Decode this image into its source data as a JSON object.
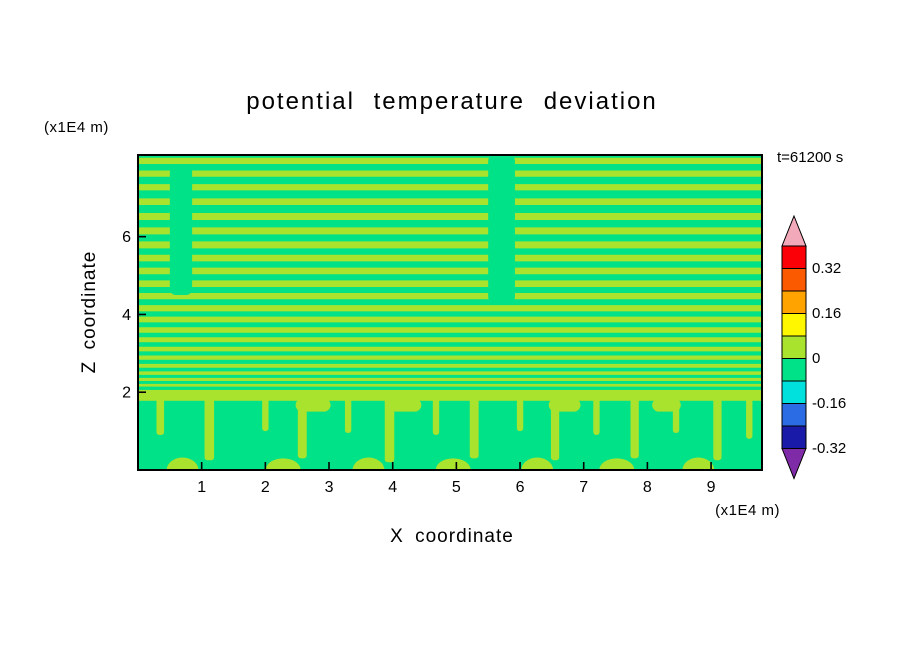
{
  "title": "potential temperature deviation",
  "annotations": {
    "time_label": "t=61200 s",
    "z_axis_units": "(x1E4 m)",
    "x_axis_units": "(x1E4 m)"
  },
  "axes": {
    "x_label": "X coordinate",
    "z_label": "Z coordinate"
  },
  "colors": {
    "background": "#FFFFFF",
    "frame": "#000000",
    "text": "#000000",
    "field_green": "#00E287",
    "stripe_yellowgreen": "#A9E32E"
  },
  "colorbar": {
    "labels": [
      "0.32",
      "0.16",
      "0",
      "-0.16",
      "-0.32"
    ],
    "segment_colors_top_to_bottom": [
      "#FB0007",
      "#FC5A00",
      "#FFA300",
      "#FFF700",
      "#A9E32E",
      "#00E287",
      "#00E0DC",
      "#2B6BE3",
      "#1A1AA8"
    ],
    "segment_values_top_to_bottom": [
      [
        0.32,
        0.4
      ],
      [
        0.24,
        0.32
      ],
      [
        0.16,
        0.24
      ],
      [
        0.08,
        0.16
      ],
      [
        0.0,
        0.08
      ],
      [
        -0.08,
        0.0
      ],
      [
        -0.16,
        -0.08
      ],
      [
        -0.24,
        -0.16
      ],
      [
        -0.32,
        -0.24
      ]
    ],
    "top_arrow_color": "#F2A9B9",
    "bottom_arrow_color": "#7F2BA8"
  },
  "chart_data": {
    "type": "heatmap",
    "subtype": "filled-contour x-z cross-section",
    "title": "potential temperature deviation",
    "xlabel": "X coordinate (x1E4 m)",
    "ylabel": "Z coordinate (x1E4 m)",
    "time_annotation": "t=61200 s",
    "xlim": [
      0,
      9.8
    ],
    "zlim": [
      0,
      8.1
    ],
    "x_ticks": [
      1,
      2,
      3,
      4,
      5,
      6,
      7,
      8,
      9
    ],
    "z_ticks": [
      2,
      4,
      6
    ],
    "contour_interval": 0.08,
    "labeled_levels": [
      0.32,
      0.16,
      0,
      -0.16,
      -0.32
    ],
    "field_value_bands": {
      "green_background": [
        -0.08,
        0.0
      ],
      "yellowgreen_stripes": [
        0.0,
        0.08
      ]
    },
    "description": "Thin horizontal gravity-wave layers (values alternating between the -0.08..0 and 0..0.08 bands) above z=2; boundary-layer band near z=2 with convective plume curtains below.",
    "wave_layers": [
      [
        7.95,
        0.16
      ],
      [
        7.62,
        0.16
      ],
      [
        7.27,
        0.16
      ],
      [
        6.9,
        0.17
      ],
      [
        6.52,
        0.18
      ],
      [
        6.15,
        0.18
      ],
      [
        5.79,
        0.18
      ],
      [
        5.45,
        0.17
      ],
      [
        5.12,
        0.17
      ],
      [
        4.79,
        0.17
      ],
      [
        4.47,
        0.16
      ],
      [
        4.16,
        0.16
      ],
      [
        3.87,
        0.15
      ],
      [
        3.6,
        0.14
      ],
      [
        3.35,
        0.13
      ],
      [
        3.11,
        0.12
      ],
      [
        2.89,
        0.11
      ],
      [
        2.68,
        0.1
      ],
      [
        2.49,
        0.09
      ],
      [
        2.33,
        0.08
      ],
      [
        2.18,
        0.07
      ]
    ],
    "layer_breaks": [
      {
        "x": [
          0.5,
          0.85
        ],
        "z": [
          4.5,
          7.8
        ]
      },
      {
        "x": [
          5.5,
          5.92
        ],
        "z": [
          4.3,
          8.1
        ]
      }
    ],
    "boundary_band_z": [
      1.78,
      2.06
    ],
    "band_caps": {
      "z": [
        1.5,
        1.84
      ],
      "items": [
        [
          2.75,
          0.55
        ],
        [
          4.2,
          0.5
        ],
        [
          6.7,
          0.5
        ],
        [
          8.3,
          0.45
        ]
      ]
    },
    "curtain_top_z": 1.95,
    "plume_curtains": [
      [
        0.35,
        0.12,
        0.9
      ],
      [
        1.12,
        0.15,
        0.25
      ],
      [
        2.0,
        0.1,
        1.0
      ],
      [
        2.58,
        0.14,
        0.3
      ],
      [
        3.3,
        0.1,
        0.95
      ],
      [
        3.95,
        0.15,
        0.2
      ],
      [
        4.68,
        0.1,
        0.9
      ],
      [
        5.28,
        0.14,
        0.3
      ],
      [
        6.0,
        0.1,
        1.0
      ],
      [
        6.55,
        0.13,
        0.25
      ],
      [
        7.2,
        0.1,
        0.9
      ],
      [
        7.8,
        0.13,
        0.3
      ],
      [
        8.45,
        0.1,
        0.95
      ],
      [
        9.1,
        0.13,
        0.25
      ],
      [
        9.6,
        0.1,
        0.8
      ]
    ],
    "surface_blobs": [
      [
        0.7,
        0.5,
        0.32
      ],
      [
        2.28,
        0.55,
        0.3
      ],
      [
        3.62,
        0.5,
        0.32
      ],
      [
        4.95,
        0.55,
        0.3
      ],
      [
        6.27,
        0.5,
        0.32
      ],
      [
        7.52,
        0.55,
        0.3
      ],
      [
        8.8,
        0.5,
        0.32
      ]
    ]
  }
}
